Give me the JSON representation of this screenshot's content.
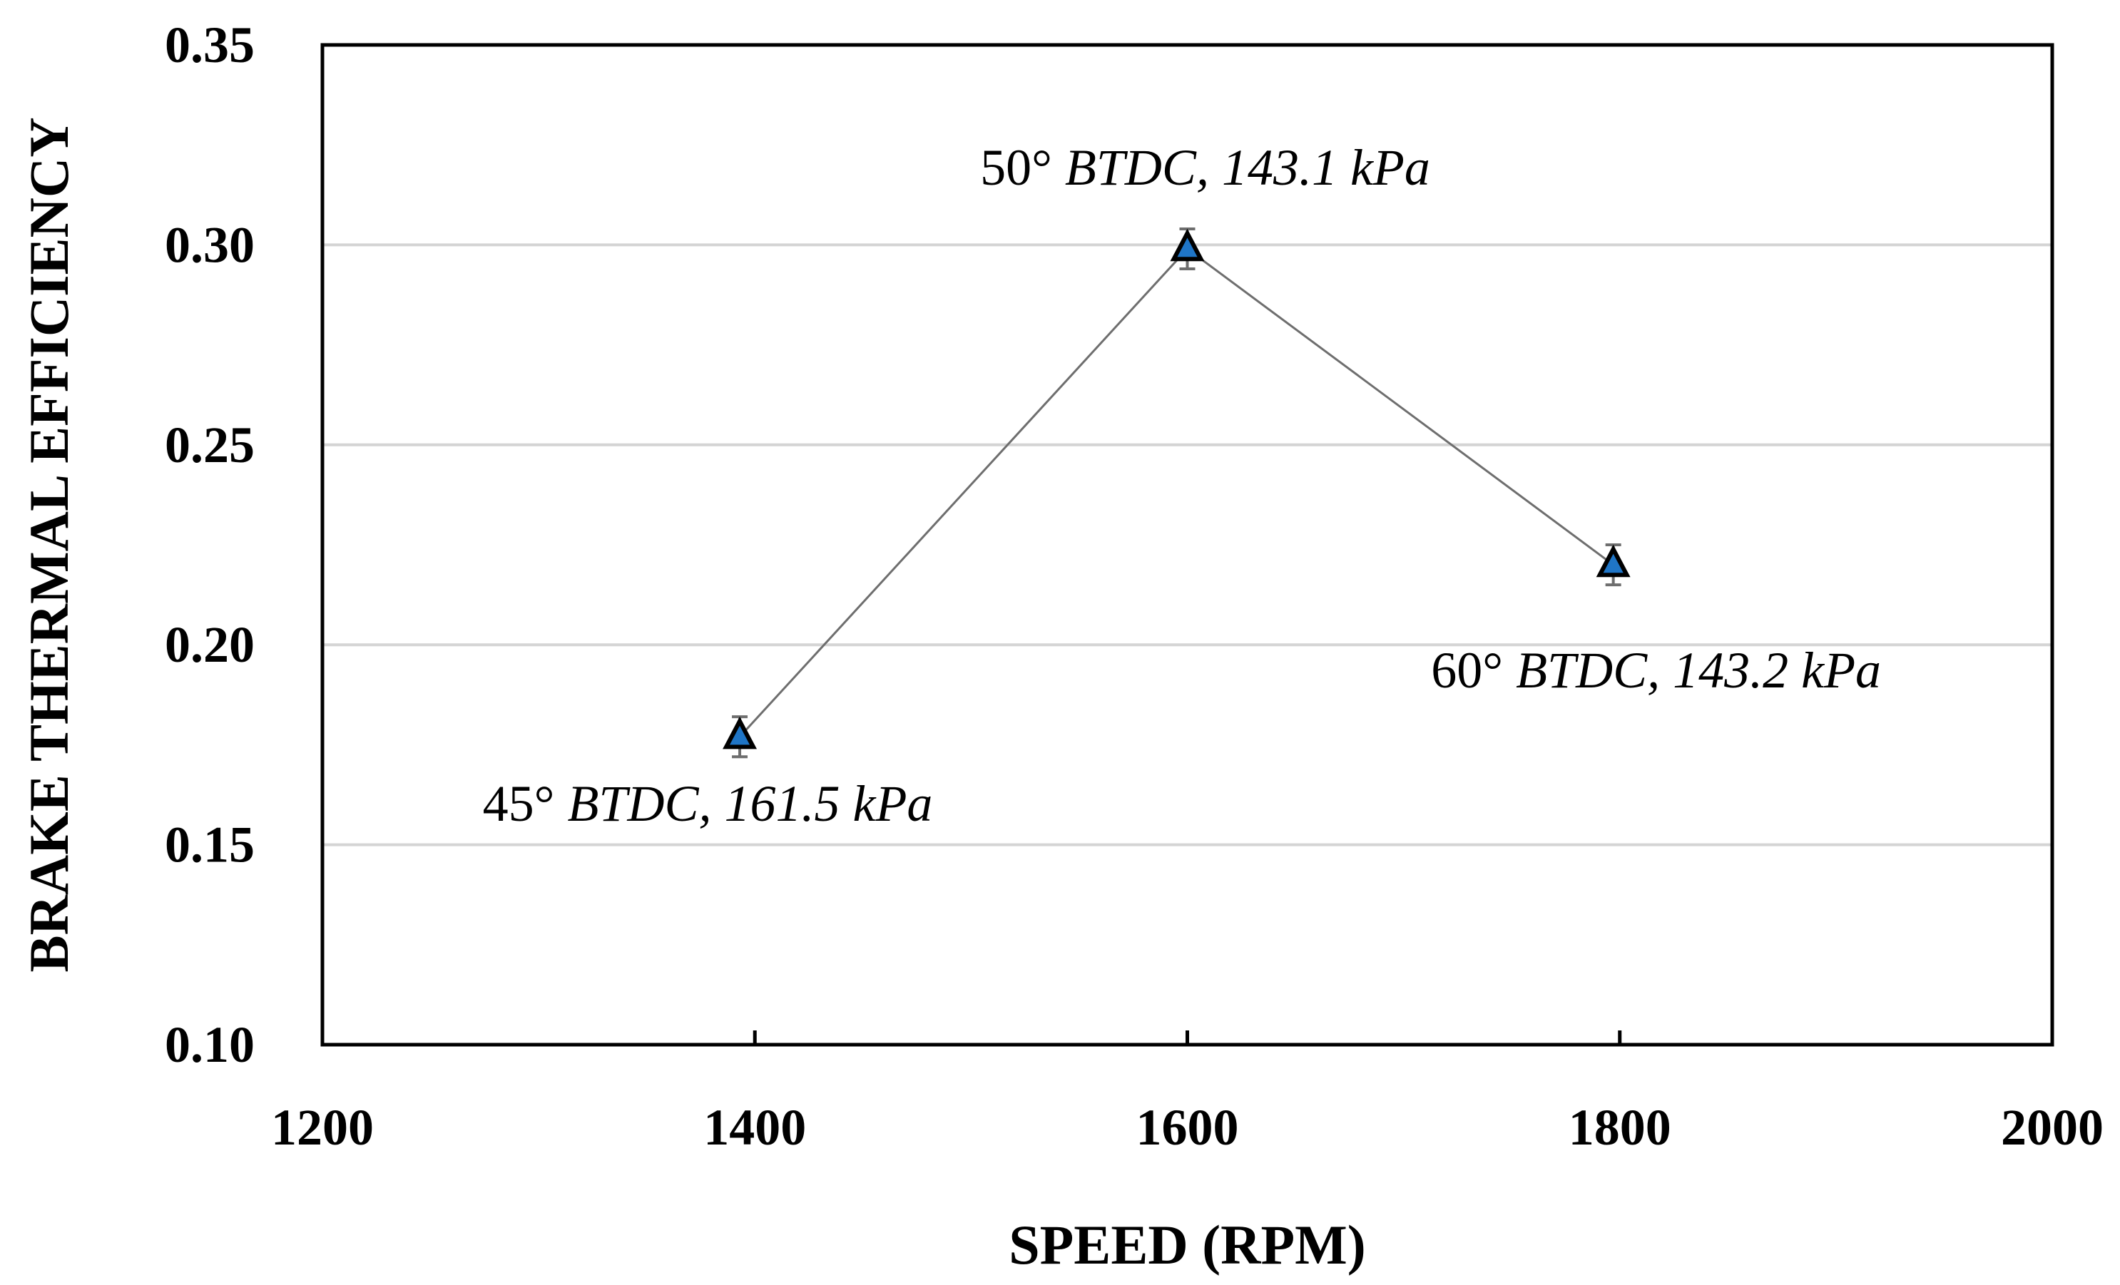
{
  "chart_data": {
    "type": "scatter",
    "title": "",
    "xlabel": "SPEED (RPM)",
    "ylabel": "BRAKE THERMAL EFFICIENCY",
    "xlim": [
      1200,
      2000
    ],
    "ylim": [
      0.1,
      0.35
    ],
    "x_ticks": [
      1200,
      1400,
      1600,
      1800,
      2000
    ],
    "x_tick_labels": [
      "1200",
      "1400",
      "1600",
      "1800",
      "2000"
    ],
    "y_ticks": [
      0.1,
      0.15,
      0.2,
      0.25,
      0.3,
      0.35
    ],
    "y_tick_labels": [
      "0.10",
      "0.15",
      "0.20",
      "0.25",
      "0.30",
      "0.35"
    ],
    "grid": "horizontal",
    "series": [
      {
        "name": "Brake thermal efficiency",
        "marker": "triangle",
        "color": "#1f75c6",
        "line_color": "#6e6e6e",
        "points": [
          {
            "x": 1393,
            "y": 0.177,
            "err": 0.005,
            "label_deg": "45°",
            "label_rest": " BTDC, 161.5 kPa",
            "label_pos": "below"
          },
          {
            "x": 1600,
            "y": 0.299,
            "err": 0.005,
            "label_deg": "50°",
            "label_rest": " BTDC, 143.1 kPa",
            "label_pos": "above"
          },
          {
            "x": 1797,
            "y": 0.22,
            "err": 0.005,
            "label_deg": "60°",
            "label_rest": " BTDC, 143.2 kPa",
            "label_pos": "below"
          }
        ]
      }
    ]
  }
}
